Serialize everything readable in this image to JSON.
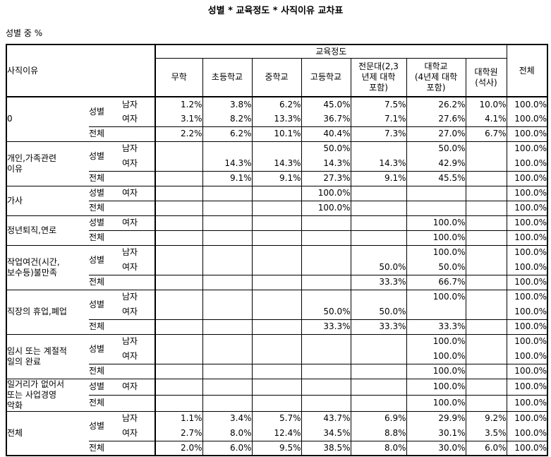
{
  "title": "성별 * 교육정도 * 사직이유 교차표",
  "subtitle": "성별 중 %",
  "colors": {
    "text": "#000000",
    "background": "#ffffff",
    "border": "#000000"
  },
  "table": {
    "stub_header": "사직이유",
    "col_group_header": "교육정도",
    "total_col_header": "전체",
    "columns": [
      "무학",
      "초등학교",
      "중학교",
      "고등학교",
      "전문대(2,3\n년제 대학\n포함)",
      "대학교\n(4년제 대학\n포함)",
      "대학원\n(석사)"
    ],
    "groups": [
      {
        "reason": "0",
        "byvar": "성별",
        "gender_rows": [
          {
            "gender": "남자",
            "values": [
              "1.2%",
              "3.8%",
              "6.2%",
              "45.0%",
              "7.5%",
              "26.2%",
              "10.0%",
              "100.0%"
            ]
          },
          {
            "gender": "여자",
            "values": [
              "3.1%",
              "8.2%",
              "13.3%",
              "36.7%",
              "7.1%",
              "27.6%",
              "4.1%",
              "100.0%"
            ]
          }
        ],
        "total_row": {
          "label": "전체",
          "values": [
            "2.2%",
            "6.2%",
            "10.1%",
            "40.4%",
            "7.3%",
            "27.0%",
            "6.7%",
            "100.0%"
          ]
        }
      },
      {
        "reason": "개인,가족관련\n이유",
        "byvar": "성별",
        "gender_rows": [
          {
            "gender": "남자",
            "values": [
              "",
              "",
              "",
              "50.0%",
              "",
              "50.0%",
              "",
              "100.0%"
            ]
          },
          {
            "gender": "여자",
            "values": [
              "",
              "14.3%",
              "14.3%",
              "14.3%",
              "14.3%",
              "42.9%",
              "",
              "100.0%"
            ]
          }
        ],
        "total_row": {
          "label": "전체",
          "values": [
            "",
            "9.1%",
            "9.1%",
            "27.3%",
            "9.1%",
            "45.5%",
            "",
            "100.0%"
          ]
        }
      },
      {
        "reason": "가사",
        "byvar": "성별",
        "gender_rows": [
          {
            "gender": "여자",
            "values": [
              "",
              "",
              "",
              "100.0%",
              "",
              "",
              "",
              "100.0%"
            ]
          }
        ],
        "total_row": {
          "label": "전체",
          "values": [
            "",
            "",
            "",
            "100.0%",
            "",
            "",
            "",
            "100.0%"
          ]
        }
      },
      {
        "reason": "정년퇴직,연로",
        "byvar": "성별",
        "gender_rows": [
          {
            "gender": "여자",
            "values": [
              "",
              "",
              "",
              "",
              "",
              "100.0%",
              "",
              "100.0%"
            ]
          }
        ],
        "total_row": {
          "label": "전체",
          "values": [
            "",
            "",
            "",
            "",
            "",
            "100.0%",
            "",
            "100.0%"
          ]
        }
      },
      {
        "reason": "작업여건(시간,\n보수등)불만족",
        "byvar": "성별",
        "gender_rows": [
          {
            "gender": "남자",
            "values": [
              "",
              "",
              "",
              "",
              "",
              "100.0%",
              "",
              "100.0%"
            ]
          },
          {
            "gender": "여자",
            "values": [
              "",
              "",
              "",
              "",
              "50.0%",
              "50.0%",
              "",
              "100.0%"
            ]
          }
        ],
        "total_row": {
          "label": "전체",
          "values": [
            "",
            "",
            "",
            "",
            "33.3%",
            "66.7%",
            "",
            "100.0%"
          ]
        }
      },
      {
        "reason": "직장의 휴업,폐업",
        "byvar": "성별",
        "gender_rows": [
          {
            "gender": "남자",
            "values": [
              "",
              "",
              "",
              "",
              "",
              "100.0%",
              "",
              "100.0%"
            ]
          },
          {
            "gender": "여자",
            "values": [
              "",
              "",
              "",
              "50.0%",
              "50.0%",
              "",
              "",
              "100.0%"
            ]
          }
        ],
        "total_row": {
          "label": "전체",
          "values": [
            "",
            "",
            "",
            "33.3%",
            "33.3%",
            "33.3%",
            "",
            "100.0%"
          ]
        }
      },
      {
        "reason": "임시 또는 계절적\n일의 완료",
        "byvar": "성별",
        "gender_rows": [
          {
            "gender": "남자",
            "values": [
              "",
              "",
              "",
              "",
              "",
              "100.0%",
              "",
              "100.0%"
            ]
          },
          {
            "gender": "여자",
            "values": [
              "",
              "",
              "",
              "",
              "",
              "100.0%",
              "",
              "100.0%"
            ]
          }
        ],
        "total_row": {
          "label": "전체",
          "values": [
            "",
            "",
            "",
            "",
            "",
            "100.0%",
            "",
            "100.0%"
          ]
        }
      },
      {
        "reason": "일거리가 없어서\n또는 사업경영\n악화",
        "byvar": "성별",
        "gender_rows": [
          {
            "gender": "여자",
            "values": [
              "",
              "",
              "",
              "",
              "",
              "100.0%",
              "",
              "100.0%"
            ]
          }
        ],
        "total_row": {
          "label": "전체",
          "values": [
            "",
            "",
            "",
            "",
            "",
            "100.0%",
            "",
            "100.0%"
          ]
        }
      },
      {
        "reason": "전체",
        "byvar": "성별",
        "gender_rows": [
          {
            "gender": "남자",
            "values": [
              "1.1%",
              "3.4%",
              "5.7%",
              "43.7%",
              "6.9%",
              "29.9%",
              "9.2%",
              "100.0%"
            ]
          },
          {
            "gender": "여자",
            "values": [
              "2.7%",
              "8.0%",
              "12.4%",
              "34.5%",
              "8.8%",
              "30.1%",
              "3.5%",
              "100.0%"
            ]
          }
        ],
        "total_row": {
          "label": "전체",
          "values": [
            "2.0%",
            "6.0%",
            "9.5%",
            "38.5%",
            "8.0%",
            "30.0%",
            "6.0%",
            "100.0%"
          ]
        }
      }
    ]
  }
}
